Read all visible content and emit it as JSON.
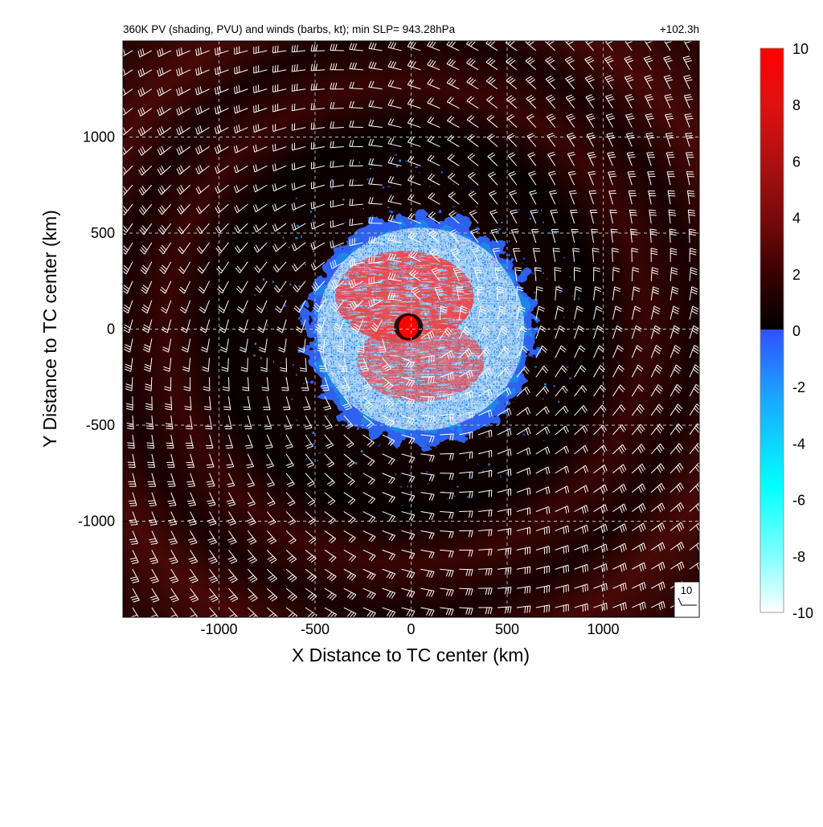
{
  "chart_data": {
    "type": "heatmap",
    "title": "360K PV (shading, PVU) and winds (barbs, kt); min SLP= 943.28hPa",
    "time_label": "+102.3h",
    "xlabel": "X Distance to TC center (km)",
    "ylabel": "Y Distance to TC center (km)",
    "xlim": [
      -1500,
      1500
    ],
    "ylim": [
      -1500,
      1500
    ],
    "x_ticks": [
      -1000,
      -500,
      0,
      500,
      1000
    ],
    "y_ticks": [
      -1000,
      -500,
      0,
      500,
      1000
    ],
    "x_tick_labels": [
      "-1000",
      "-500",
      "0",
      "500",
      "1000"
    ],
    "y_tick_labels": [
      "-1000",
      "-500",
      "0",
      "500",
      "1000"
    ],
    "grid": true,
    "grid_style": "dashed",
    "colorbar": {
      "min": -10,
      "max": 10,
      "ticks": [
        10,
        8,
        6,
        4,
        2,
        0,
        -2,
        -4,
        -6,
        -8,
        -10
      ],
      "tick_labels": [
        "10",
        "8",
        "6",
        "4",
        "2",
        "0",
        "-2",
        "-4",
        "-6",
        "-8",
        "-10"
      ],
      "positive_colors": [
        "#000000",
        "#3a0000",
        "#7a0a0a",
        "#b01010",
        "#e01010",
        "#ff0000"
      ],
      "negative_colors": [
        "#3050ff",
        "#1aa8ff",
        "#00ffff",
        "#80ffff",
        "#ffffff"
      ]
    },
    "features": {
      "center_pv_max": {
        "x": -30,
        "y": 20,
        "value": 10
      },
      "negative_pv_ring": {
        "x_range": [
          -550,
          650
        ],
        "y_range": [
          -600,
          600
        ]
      },
      "elevated_pv_outer_ring_radius_km": 1150
    },
    "wind_barbs": {
      "units": "kt",
      "reference_speed_label": "10",
      "grid_spacing_km": 100,
      "rotation": "cyclonic"
    }
  }
}
